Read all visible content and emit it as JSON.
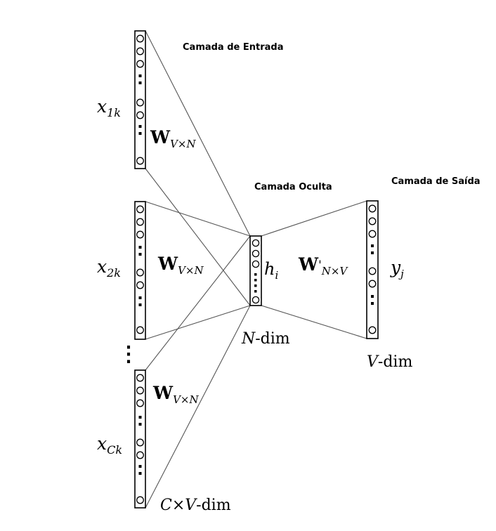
{
  "labels": {
    "input_layer": "Camada de Entrada",
    "hidden_layer": "Camada Oculta",
    "output_layer": "Camada de Saída"
  },
  "input_vectors": [
    {
      "var": "x",
      "sub": "1k"
    },
    {
      "var": "x",
      "sub": "2k"
    },
    {
      "var": "x",
      "sub": "Ck"
    }
  ],
  "weight_input": {
    "symbol": "W",
    "sub": "V×N"
  },
  "weight_output": {
    "symbol": "W",
    "prime": "'",
    "sub": "N×V"
  },
  "hidden": {
    "var": "h",
    "sub": "i",
    "dim_var": "N",
    "dim_text": "-dim"
  },
  "output": {
    "var": "y",
    "sub": "j",
    "dim_var": "V",
    "dim_text": "-dim"
  },
  "input_dim": {
    "var": "C×V",
    "text": "-dim"
  },
  "ellipsis": "⋮"
}
